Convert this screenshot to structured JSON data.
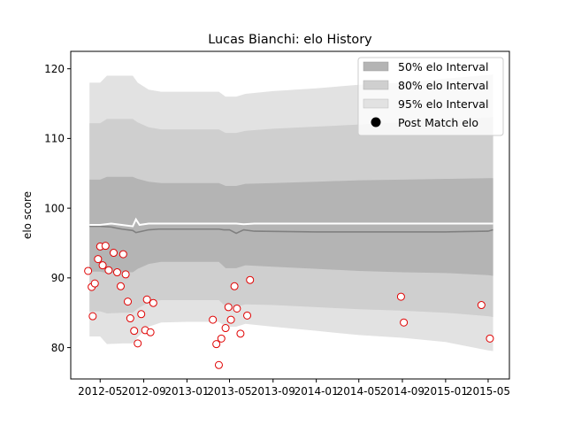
{
  "chart_data": {
    "type": "line",
    "title": "Lucas Bianchi: elo History",
    "xlabel": "",
    "ylabel": "elo score",
    "ylim": [
      75.5,
      122.5
    ],
    "yticks": [
      80,
      90,
      100,
      110,
      120
    ],
    "xticks": [
      "2012-05",
      "2012-09",
      "2013-01",
      "2013-05",
      "2013-09",
      "2014-01",
      "2014-05",
      "2014-09",
      "2015-01",
      "2015-05"
    ],
    "xlim": [
      "2012-02-08",
      "2015-06-30"
    ],
    "grid": false,
    "legend_position": "top-right",
    "colors": {
      "band95": "#e2e2e2",
      "band80": "#cfcfcf",
      "band50": "#b4b4b4",
      "mean_line": "#808080",
      "upper_line": "#ffffff",
      "marker_edge": "#e00000",
      "marker_fill": "#ffffff"
    },
    "series": [
      {
        "name": "95% elo Interval",
        "kind": "band",
        "x": [
          "2012-04-01",
          "2012-05-01",
          "2012-05-20",
          "2012-07-01",
          "2012-08-01",
          "2012-08-15",
          "2012-09-15",
          "2012-10-20",
          "2013-01-01",
          "2013-04-01",
          "2013-04-20",
          "2013-05-20",
          "2013-06-15",
          "2013-09-01",
          "2014-01-01",
          "2014-05-01",
          "2014-09-01",
          "2015-01-01",
          "2015-05-01",
          "2015-05-15"
        ],
        "low": [
          81.6,
          81.6,
          80.5,
          80.6,
          80.6,
          81.5,
          83.0,
          83.6,
          83.7,
          83.7,
          83.0,
          83.0,
          83.4,
          83.0,
          82.4,
          81.8,
          81.4,
          80.8,
          79.6,
          79.5
        ],
        "high": [
          118.0,
          118.0,
          119.0,
          119.0,
          119.0,
          118.0,
          117.0,
          116.7,
          116.7,
          116.7,
          116.0,
          116.0,
          116.4,
          116.8,
          117.2,
          117.7,
          118.0,
          118.6,
          119.1,
          119.2
        ]
      },
      {
        "name": "80% elo Interval",
        "kind": "band",
        "x": [
          "2012-04-01",
          "2012-05-01",
          "2012-05-20",
          "2012-07-01",
          "2012-08-01",
          "2012-08-15",
          "2012-09-15",
          "2012-10-20",
          "2013-01-01",
          "2013-04-01",
          "2013-04-20",
          "2013-05-20",
          "2013-06-15",
          "2013-09-01",
          "2014-01-01",
          "2014-05-01",
          "2014-09-01",
          "2015-01-01",
          "2015-05-01",
          "2015-05-15"
        ],
        "low": [
          85.2,
          85.2,
          84.9,
          85.0,
          85.0,
          85.6,
          86.5,
          86.8,
          86.8,
          86.8,
          85.9,
          85.9,
          86.2,
          86.1,
          85.8,
          85.5,
          85.3,
          85.0,
          84.5,
          84.4
        ],
        "high": [
          112.2,
          112.2,
          112.8,
          112.8,
          112.8,
          112.3,
          111.6,
          111.3,
          111.3,
          111.3,
          110.8,
          110.8,
          111.1,
          111.4,
          111.7,
          112.0,
          112.3,
          112.6,
          113.0,
          113.1
        ]
      },
      {
        "name": "50% elo Interval",
        "kind": "band",
        "x": [
          "2012-04-01",
          "2012-05-01",
          "2012-05-20",
          "2012-07-01",
          "2012-08-01",
          "2012-08-15",
          "2012-09-15",
          "2012-10-20",
          "2013-01-01",
          "2013-04-01",
          "2013-04-20",
          "2013-05-20",
          "2013-06-15",
          "2013-09-01",
          "2014-01-01",
          "2014-05-01",
          "2014-09-01",
          "2015-01-01",
          "2015-05-01",
          "2015-05-15"
        ],
        "low": [
          90.9,
          90.9,
          90.7,
          90.8,
          90.8,
          91.3,
          92.0,
          92.3,
          92.3,
          92.3,
          91.4,
          91.4,
          91.8,
          91.6,
          91.3,
          91.0,
          90.8,
          90.7,
          90.4,
          90.3
        ],
        "high": [
          104.1,
          104.1,
          104.5,
          104.5,
          104.5,
          104.2,
          103.8,
          103.6,
          103.6,
          103.6,
          103.2,
          103.2,
          103.5,
          103.6,
          103.8,
          104.0,
          104.1,
          104.2,
          104.3,
          104.3
        ]
      },
      {
        "name": "Mean",
        "kind": "line",
        "color": "#808080",
        "x": [
          "2012-04-01",
          "2012-05-01",
          "2012-06-01",
          "2012-07-01",
          "2012-08-01",
          "2012-08-10",
          "2012-09-15",
          "2012-10-15",
          "2013-01-01",
          "2013-04-01",
          "2013-04-15",
          "2013-05-01",
          "2013-05-20",
          "2013-06-10",
          "2013-07-10",
          "2014-01-01",
          "2014-06-01",
          "2014-09-01",
          "2015-01-01",
          "2015-05-01",
          "2015-05-15"
        ],
        "y": [
          97.4,
          97.4,
          97.3,
          97.0,
          96.8,
          96.5,
          96.9,
          97.0,
          97.0,
          97.0,
          96.9,
          96.9,
          96.4,
          96.9,
          96.7,
          96.6,
          96.6,
          96.6,
          96.6,
          96.7,
          96.9
        ]
      },
      {
        "name": "Upper",
        "kind": "line",
        "color": "#ffffff",
        "x": [
          "2012-04-01",
          "2012-05-01",
          "2012-06-01",
          "2012-07-01",
          "2012-08-01",
          "2012-08-10",
          "2012-08-20",
          "2012-09-15",
          "2012-10-15",
          "2013-01-01",
          "2013-04-01",
          "2013-05-01",
          "2013-05-20",
          "2013-06-10",
          "2013-07-10",
          "2014-01-01",
          "2014-06-01",
          "2014-09-01",
          "2015-01-01",
          "2015-05-15"
        ],
        "y": [
          97.6,
          97.6,
          97.8,
          97.6,
          97.4,
          98.4,
          97.6,
          97.8,
          97.8,
          97.8,
          97.8,
          97.8,
          97.8,
          97.7,
          97.8,
          97.8,
          97.8,
          97.8,
          97.8,
          97.8
        ]
      },
      {
        "name": "Post Match elo",
        "kind": "scatter",
        "x": [
          "2012-03-28",
          "2012-04-07",
          "2012-04-10",
          "2012-04-16",
          "2012-04-25",
          "2012-05-01",
          "2012-05-08",
          "2012-05-16",
          "2012-05-25",
          "2012-06-08",
          "2012-06-18",
          "2012-06-28",
          "2012-07-05",
          "2012-07-12",
          "2012-07-18",
          "2012-07-25",
          "2012-08-05",
          "2012-08-15",
          "2012-08-25",
          "2012-09-05",
          "2012-09-10",
          "2012-09-20",
          "2012-09-28",
          "2013-03-15",
          "2013-03-25",
          "2013-04-01",
          "2013-04-08",
          "2013-04-20",
          "2013-04-28",
          "2013-05-05",
          "2013-05-15",
          "2013-05-22",
          "2013-06-01",
          "2013-06-20",
          "2013-06-28",
          "2014-08-28",
          "2014-09-05",
          "2015-04-12",
          "2015-05-06"
        ],
        "y": [
          91.0,
          88.7,
          84.5,
          89.2,
          92.7,
          94.5,
          91.8,
          94.6,
          91.1,
          93.6,
          90.8,
          88.8,
          93.4,
          90.5,
          86.6,
          84.2,
          82.4,
          80.6,
          84.8,
          82.5,
          86.9,
          82.2,
          86.4,
          84.0,
          80.5,
          77.5,
          81.3,
          82.8,
          85.8,
          84.0,
          88.8,
          85.6,
          82.0,
          84.6,
          89.7,
          87.3,
          83.6,
          86.1,
          81.3
        ]
      }
    ]
  },
  "legend": {
    "items": [
      {
        "label": "50% elo Interval",
        "swatch": "#b4b4b4"
      },
      {
        "label": "80% elo Interval",
        "swatch": "#cfcfcf"
      },
      {
        "label": "95% elo Interval",
        "swatch": "#e2e2e2"
      },
      {
        "label": "Post Match elo",
        "swatch": "#000000"
      }
    ]
  }
}
